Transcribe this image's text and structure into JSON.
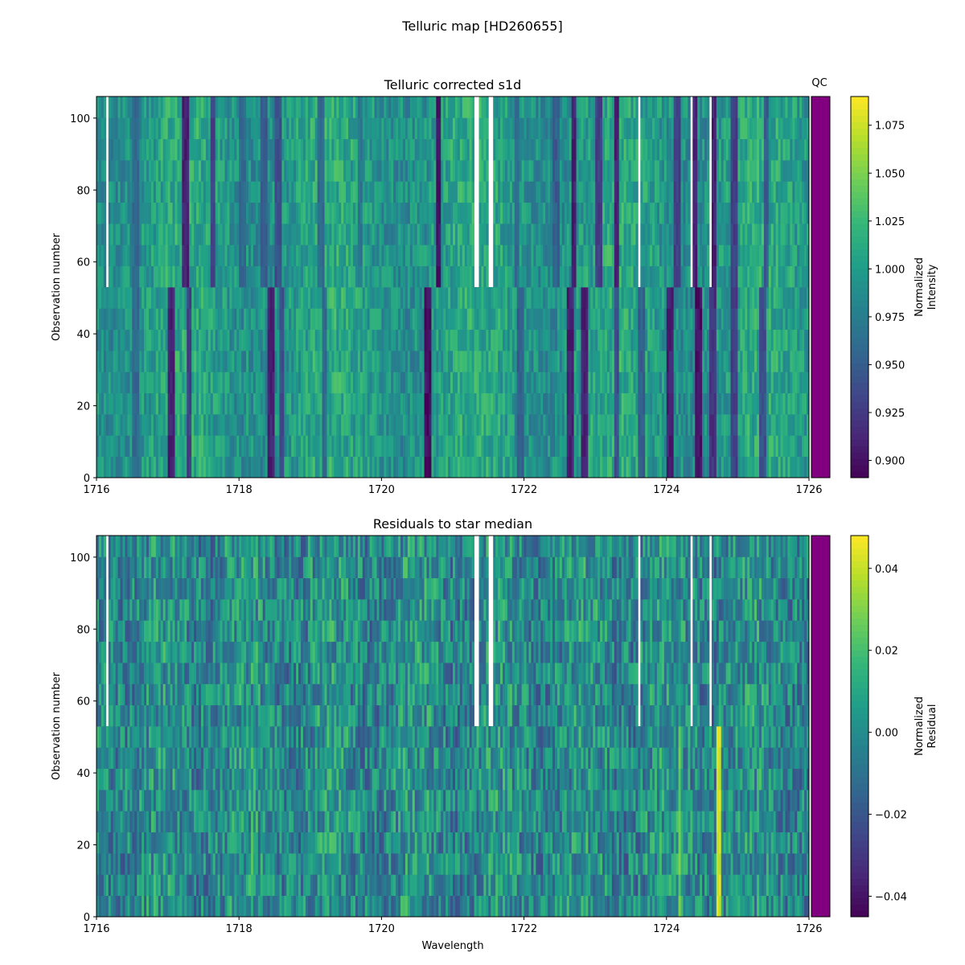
{
  "figure": {
    "title": "Telluric map [HD260655]"
  },
  "colors": {
    "viridis": [
      "#440154",
      "#482878",
      "#3e4989",
      "#31688e",
      "#26828e",
      "#1f9e89",
      "#35b779",
      "#6ece58",
      "#b5de2b",
      "#fde725"
    ],
    "qc_pass": "#800080"
  },
  "chart_data": [
    {
      "type": "heatmap",
      "title": "Telluric corrected s1d",
      "xlabel": "",
      "ylabel": "Observation number",
      "xlim": [
        1716,
        1726
      ],
      "ylim": [
        0,
        106
      ],
      "xticks": [
        1716,
        1718,
        1720,
        1722,
        1724,
        1726
      ],
      "yticks": [
        0,
        20,
        40,
        60,
        80,
        100
      ],
      "colorbar": {
        "label": "Normalized\nIntensity",
        "range": [
          0.891,
          1.09
        ],
        "ticks": [
          "0.900",
          "0.925",
          "0.950",
          "0.975",
          "1.000",
          "1.025",
          "1.050",
          "1.075"
        ],
        "tick_values": [
          0.9,
          0.925,
          0.95,
          0.975,
          1.0,
          1.025,
          1.05,
          1.075
        ]
      },
      "qc_label": "QC",
      "observation_break": 55,
      "gaps": [
        [
          1716.12,
          1716.18
        ],
        [
          1721.3,
          1721.35
        ],
        [
          1721.5,
          1721.55
        ],
        [
          1723.6,
          1723.64
        ],
        [
          1724.35,
          1724.38
        ],
        [
          1724.6,
          1724.64
        ]
      ],
      "absorption_lines_upper": [
        [
          1716.55,
          0.95
        ],
        [
          1717.25,
          0.9
        ],
        [
          1717.62,
          0.92
        ],
        [
          1718.05,
          0.95
        ],
        [
          1718.35,
          0.94
        ],
        [
          1718.55,
          0.93
        ],
        [
          1719.15,
          0.95
        ],
        [
          1719.7,
          0.96
        ],
        [
          1720.8,
          0.89
        ],
        [
          1721.9,
          0.95
        ],
        [
          1722.45,
          0.94
        ],
        [
          1722.7,
          0.9
        ],
        [
          1723.05,
          0.92
        ],
        [
          1723.3,
          0.9
        ],
        [
          1724.15,
          0.92
        ],
        [
          1724.4,
          0.9
        ],
        [
          1724.65,
          0.9
        ],
        [
          1724.95,
          0.92
        ],
        [
          1725.4,
          0.94
        ]
      ],
      "absorption_lines_lower": [
        [
          1716.55,
          0.95
        ],
        [
          1717.05,
          0.9
        ],
        [
          1717.3,
          0.92
        ],
        [
          1718.45,
          0.9
        ],
        [
          1718.6,
          0.93
        ],
        [
          1719.2,
          0.95
        ],
        [
          1720.65,
          0.89
        ],
        [
          1721.95,
          0.94
        ],
        [
          1722.65,
          0.9
        ],
        [
          1722.85,
          0.9
        ],
        [
          1723.3,
          0.93
        ],
        [
          1723.65,
          0.94
        ],
        [
          1724.05,
          0.9
        ],
        [
          1724.45,
          0.89
        ],
        [
          1724.65,
          0.91
        ],
        [
          1724.95,
          0.92
        ],
        [
          1725.35,
          0.93
        ]
      ]
    },
    {
      "type": "heatmap",
      "title": "Residuals to star median",
      "xlabel": "Wavelength",
      "ylabel": "Observation number",
      "xlim": [
        1716,
        1726
      ],
      "ylim": [
        0,
        106
      ],
      "xticks": [
        1716,
        1718,
        1720,
        1722,
        1724,
        1726
      ],
      "yticks": [
        0,
        20,
        40,
        60,
        80,
        100
      ],
      "colorbar": {
        "label": "Normalized\nResidual",
        "range": [
          -0.045,
          0.048
        ],
        "ticks": [
          "−0.04",
          "−0.02",
          "0.00",
          "0.02",
          "0.04"
        ],
        "tick_values": [
          -0.04,
          -0.02,
          0.0,
          0.02,
          0.04
        ]
      },
      "observation_break": 55,
      "gaps": [
        [
          1716.12,
          1716.18
        ],
        [
          1721.3,
          1721.35
        ],
        [
          1721.5,
          1721.55
        ],
        [
          1723.6,
          1723.64
        ],
        [
          1724.35,
          1724.38
        ],
        [
          1724.6,
          1724.64
        ]
      ],
      "bright_residual_lines": [
        [
          1724.18,
          0.03
        ],
        [
          1724.73,
          0.045
        ]
      ]
    }
  ]
}
